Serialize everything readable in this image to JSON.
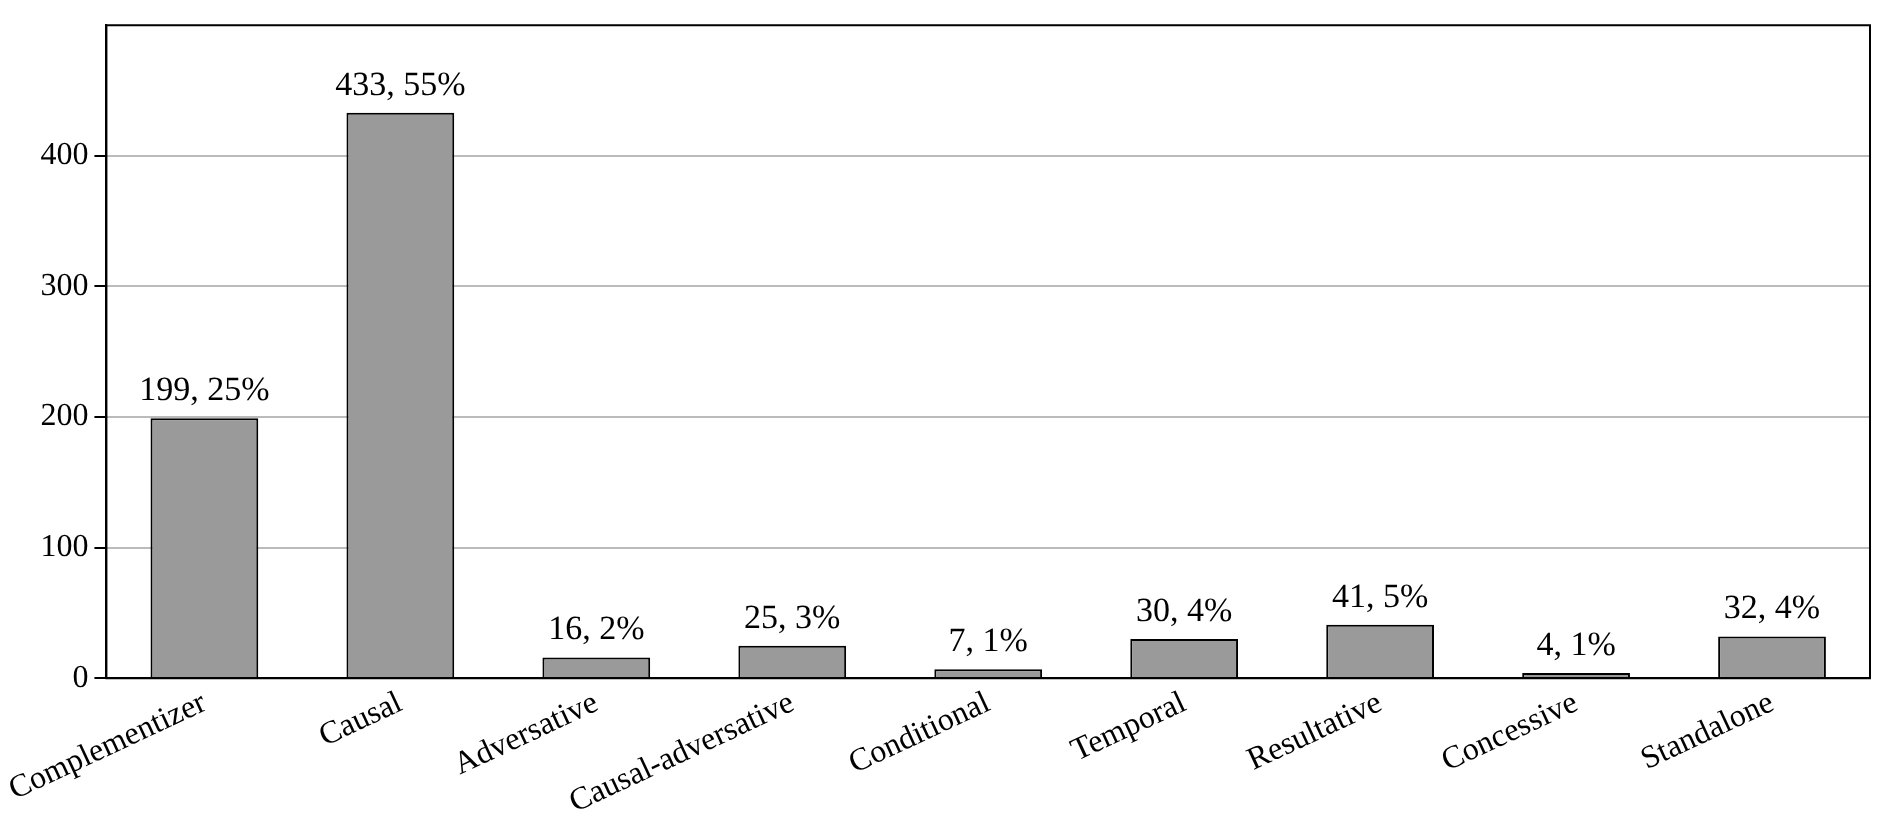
{
  "chart_data": {
    "type": "bar",
    "categories": [
      "Complementizer",
      "Causal",
      "Adversative",
      "Causal-adversative",
      "Conditional",
      "Temporal",
      "Resultative",
      "Concessive",
      "Standalone"
    ],
    "values": [
      199,
      433,
      16,
      25,
      7,
      30,
      41,
      4,
      32
    ],
    "value_labels": [
      "199, 25%",
      "433, 55%",
      "16, 2%",
      "25, 3%",
      "7, 1%",
      "30, 4%",
      "41, 5%",
      "4, 1%",
      "32, 4%"
    ],
    "color": "#9a9a9a",
    "ylim": [
      0,
      500
    ],
    "yticks": [
      0,
      100,
      200,
      300,
      400
    ],
    "grid": "y",
    "legend": false
  }
}
